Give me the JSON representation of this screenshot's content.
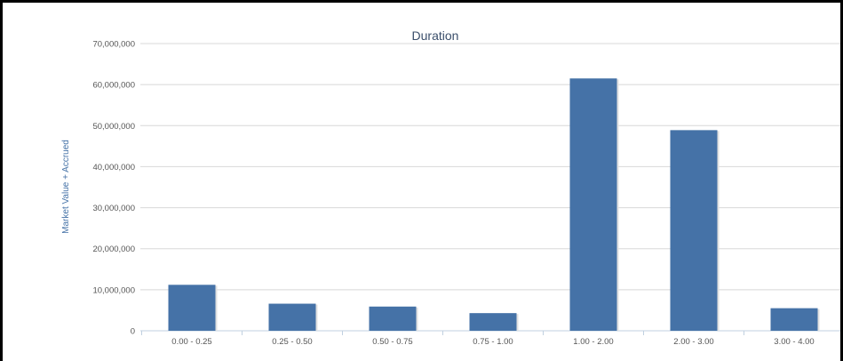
{
  "chart_data": {
    "type": "bar",
    "title": "Duration",
    "xlabel": "",
    "ylabel": "Market Value + Accrued",
    "categories": [
      "0.00 - 0.25",
      "0.25 - 0.50",
      "0.50 - 0.75",
      "0.75 - 1.00",
      "1.00 - 2.00",
      "2.00 - 3.00",
      "3.00 - 4.00"
    ],
    "values": [
      11200000,
      6600000,
      5900000,
      4300000,
      61500000,
      48900000,
      5500000
    ],
    "ylim": [
      0,
      70000000
    ],
    "yticks": [
      "0",
      "10,000,000",
      "20,000,000",
      "30,000,000",
      "40,000,000",
      "50,000,000",
      "60,000,000",
      "70,000,000"
    ],
    "grid": true,
    "bar_color": "#4572a7"
  }
}
